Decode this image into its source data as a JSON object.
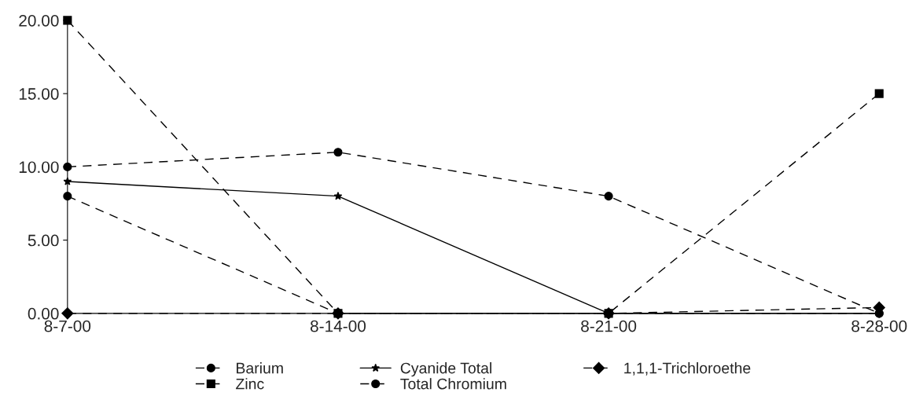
{
  "chart_data": {
    "type": "line",
    "categories": [
      "8-7-00",
      "8-14-00",
      "8-21-00",
      "8-28-00"
    ],
    "series": [
      {
        "name": "Barium",
        "color": "#000000",
        "values": [
          10,
          11,
          8,
          0
        ],
        "marker": "circle",
        "line_style": "dashed"
      },
      {
        "name": "Zinc",
        "color": "#000000",
        "values": [
          20,
          0,
          0,
          15
        ],
        "marker": "square",
        "line_style": "dashed"
      },
      {
        "name": "Cyanide Total",
        "color": "#000000",
        "values": [
          9,
          8,
          0,
          0
        ],
        "marker": "star",
        "line_style": "solid"
      },
      {
        "name": "Total Chromium",
        "color": "#000000",
        "values": [
          8,
          0,
          0,
          0
        ],
        "marker": "circle",
        "line_style": "dashed"
      },
      {
        "name": "1,1,1-Trichloroethe",
        "color": "#000000",
        "values": [
          0,
          0,
          0,
          0.4
        ],
        "marker": "diamond",
        "line_style": "dashed"
      }
    ],
    "ylim": [
      0,
      20
    ],
    "yticks": [
      {
        "value": 0,
        "label": "0.00"
      },
      {
        "value": 5,
        "label": "5.00"
      },
      {
        "value": 10,
        "label": "10.00"
      },
      {
        "value": 15,
        "label": "15.00"
      },
      {
        "value": 20,
        "label": "20.00"
      }
    ],
    "grid": false,
    "legend": "bottom"
  }
}
